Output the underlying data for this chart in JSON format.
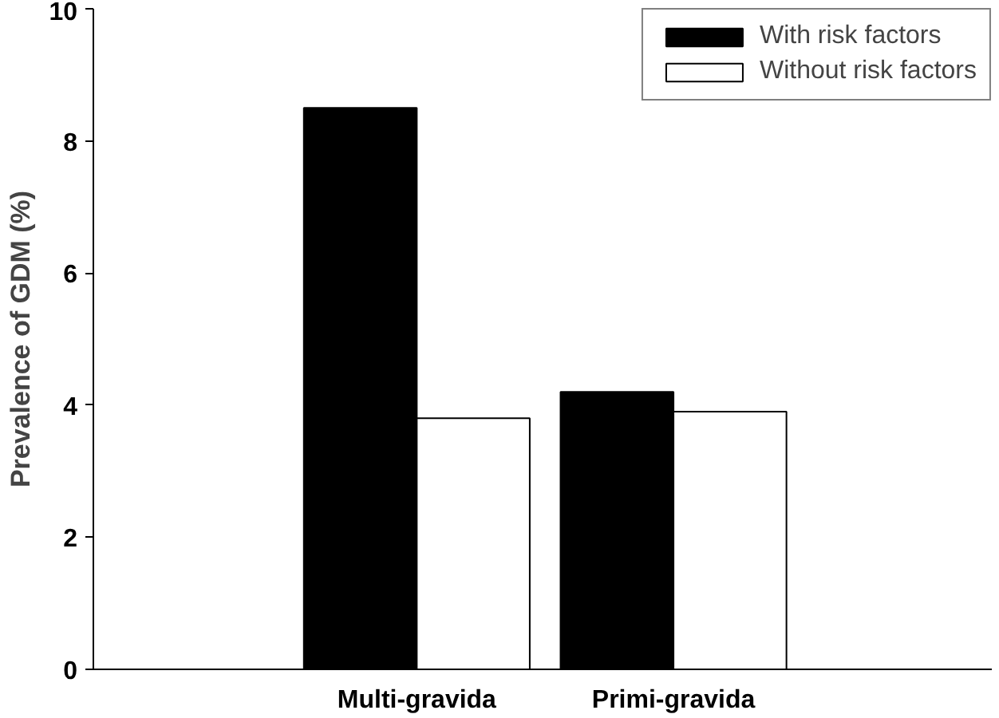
{
  "chart_data": {
    "type": "bar",
    "ylabel": "Prevalence of GDM (%)",
    "categories": [
      "Multi-gravida",
      "Primi-gravida"
    ],
    "series": [
      {
        "name": "With risk factors",
        "color": "#000000",
        "values": [
          8.5,
          4.2
        ]
      },
      {
        "name": "Without risk factors",
        "color": "#ffffff",
        "values": [
          3.8,
          3.9
        ]
      }
    ],
    "ylim": [
      0,
      10
    ],
    "yticks": [
      0,
      2,
      4,
      6,
      8,
      10
    ],
    "grid": false,
    "legend": "top right"
  }
}
